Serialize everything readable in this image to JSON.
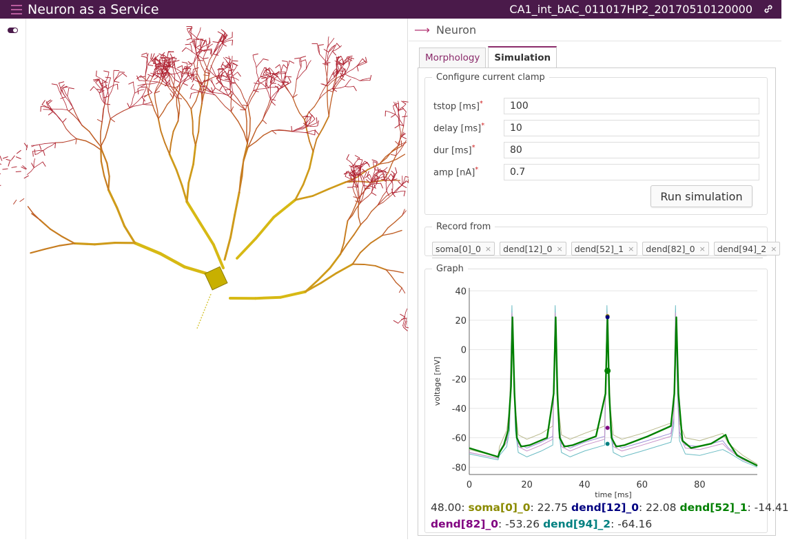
{
  "app": {
    "title": "Neuron as a Service",
    "model_name": "CA1_int_bAC_011017HP2_20170510120000"
  },
  "panel": {
    "title": "Neuron"
  },
  "tabs": [
    {
      "label": "Morphology",
      "active": false
    },
    {
      "label": "Simulation",
      "active": true
    }
  ],
  "clamp": {
    "legend": "Configure current clamp",
    "fields": [
      {
        "label": "tstop [ms]",
        "value": "100"
      },
      {
        "label": "delay [ms]",
        "value": "10"
      },
      {
        "label": "dur [ms]",
        "value": "80"
      },
      {
        "label": "amp [nA]",
        "value": "0.7"
      }
    ],
    "run_label": "Run simulation"
  },
  "record": {
    "legend": "Record from",
    "tags": [
      "soma[0]_0",
      "dend[12]_0",
      "dend[52]_1",
      "dend[82]_0",
      "dend[94]_2"
    ]
  },
  "graph": {
    "legend": "Graph",
    "readout": {
      "time": "48.00",
      "entries": [
        {
          "name": "soma[0]_0",
          "value": "22.75",
          "color": "#8b8b00"
        },
        {
          "name": "dend[12]_0",
          "value": "22.08",
          "color": "#000080"
        },
        {
          "name": "dend[52]_1",
          "value": "-14.41",
          "color": "#008000"
        },
        {
          "name": "dend[82]_0",
          "value": "-53.26",
          "color": "#800080"
        },
        {
          "name": "dend[94]_2",
          "value": "-64.16",
          "color": "#008080"
        }
      ]
    }
  },
  "chart_data": {
    "type": "line",
    "xlabel": "time [ms]",
    "ylabel": "voltage [mV]",
    "xlim": [
      0,
      100
    ],
    "ylim": [
      -85,
      42
    ],
    "xticks": [
      0,
      20,
      40,
      60,
      80
    ],
    "yticks": [
      40,
      20,
      0,
      -20,
      -40,
      -60,
      -80
    ],
    "cursor_x": 48,
    "series": [
      {
        "name": "soma[0]_0",
        "color": "#b8b88a",
        "width": 1,
        "x": [
          0,
          10,
          10.5,
          13,
          14,
          14.8,
          15.3,
          16,
          17,
          20,
          25,
          29,
          29.8,
          30.3,
          31,
          32,
          35,
          40,
          47,
          47.8,
          48.3,
          49,
          50,
          53,
          60,
          70,
          71,
          71.6,
          72.3,
          73,
          75,
          80,
          88,
          90,
          95,
          100
        ],
        "y": [
          -68,
          -73,
          -66,
          -55,
          -40,
          24,
          0,
          -40,
          -58,
          -61,
          -57,
          -52,
          24,
          0,
          -40,
          -58,
          -61,
          -57,
          -52,
          24,
          0,
          -40,
          -58,
          -61,
          -57,
          -50,
          -40,
          24,
          -20,
          -50,
          -60,
          -62,
          -57,
          -64,
          -72,
          -78
        ]
      },
      {
        "name": "dend[12]_0",
        "color": "#9d8fd8",
        "width": 1,
        "x": [
          0,
          10,
          10.5,
          13,
          14,
          14.8,
          15.3,
          16,
          17,
          20,
          25,
          29,
          29.8,
          30.3,
          31,
          32,
          35,
          40,
          47,
          47.8,
          48.3,
          49,
          50,
          53,
          60,
          70,
          71,
          71.6,
          72.3,
          73,
          75,
          80,
          88,
          90,
          95,
          100
        ],
        "y": [
          -70,
          -74,
          -69,
          -61,
          -48,
          22,
          -5,
          -48,
          -64,
          -67,
          -63,
          -59,
          22,
          -5,
          -48,
          -64,
          -67,
          -63,
          -59,
          22,
          -5,
          -48,
          -64,
          -67,
          -63,
          -57,
          -46,
          22,
          -25,
          -56,
          -65,
          -66,
          -62,
          -67,
          -74,
          -79
        ]
      },
      {
        "name": "dend[94]_2",
        "color": "#6bbcc4",
        "width": 1,
        "x": [
          0,
          10,
          10.5,
          13,
          14,
          14.8,
          15.3,
          16,
          17,
          20,
          25,
          29,
          29.8,
          30.3,
          31,
          32,
          35,
          40,
          47,
          47.8,
          48.3,
          49,
          50,
          53,
          60,
          70,
          71,
          71.6,
          72.3,
          73,
          75,
          80,
          88,
          90,
          95,
          100
        ],
        "y": [
          -71,
          -75,
          -72,
          -66,
          -55,
          30,
          -10,
          -55,
          -70,
          -73,
          -69,
          -65,
          30,
          -10,
          -55,
          -70,
          -73,
          -69,
          -65,
          30,
          -10,
          -55,
          -70,
          -73,
          -69,
          -63,
          -52,
          30,
          -30,
          -62,
          -71,
          -72,
          -68,
          -70,
          -76,
          -80
        ]
      },
      {
        "name": "dend[82]_0",
        "color": "#c890c8",
        "width": 1,
        "x": [
          0,
          10,
          10.5,
          13,
          14,
          14.8,
          15.3,
          16,
          17,
          20,
          25,
          29,
          29.8,
          30.3,
          31,
          32,
          35,
          40,
          47,
          47.8,
          48.3,
          49,
          50,
          53,
          60,
          70,
          71,
          71.6,
          72.3,
          73,
          75,
          80,
          88,
          90,
          95,
          100
        ],
        "y": [
          -70,
          -74,
          -70,
          -63,
          -50,
          25,
          -6,
          -50,
          -66,
          -69,
          -65,
          -61,
          25,
          -6,
          -50,
          -66,
          -69,
          -65,
          -61,
          25,
          -6,
          -50,
          -66,
          -69,
          -65,
          -59,
          -48,
          25,
          -26,
          -58,
          -67,
          -68,
          -64,
          -68,
          -75,
          -79
        ]
      },
      {
        "name": "dend[52]_1",
        "color": "#008000",
        "width": 2.4,
        "x": [
          0,
          10,
          10.5,
          12,
          13.5,
          14.5,
          15,
          15.7,
          16.5,
          18,
          21,
          27,
          29.3,
          30,
          30.6,
          31.4,
          33,
          36,
          44,
          47.3,
          48,
          48.6,
          49.4,
          51,
          54,
          62,
          70,
          71.2,
          71.9,
          72.6,
          74,
          77,
          84,
          89,
          90,
          93,
          100
        ],
        "y": [
          -67,
          -73,
          -70,
          -65,
          -55,
          -25,
          22,
          -30,
          -60,
          -66,
          -65,
          -60,
          -30,
          22,
          -30,
          -60,
          -66,
          -65,
          -59,
          -30,
          22,
          -30,
          -60,
          -66,
          -65,
          -59,
          -52,
          -30,
          22,
          -30,
          -62,
          -67,
          -64,
          -58,
          -63,
          -72,
          -79
        ]
      }
    ]
  }
}
